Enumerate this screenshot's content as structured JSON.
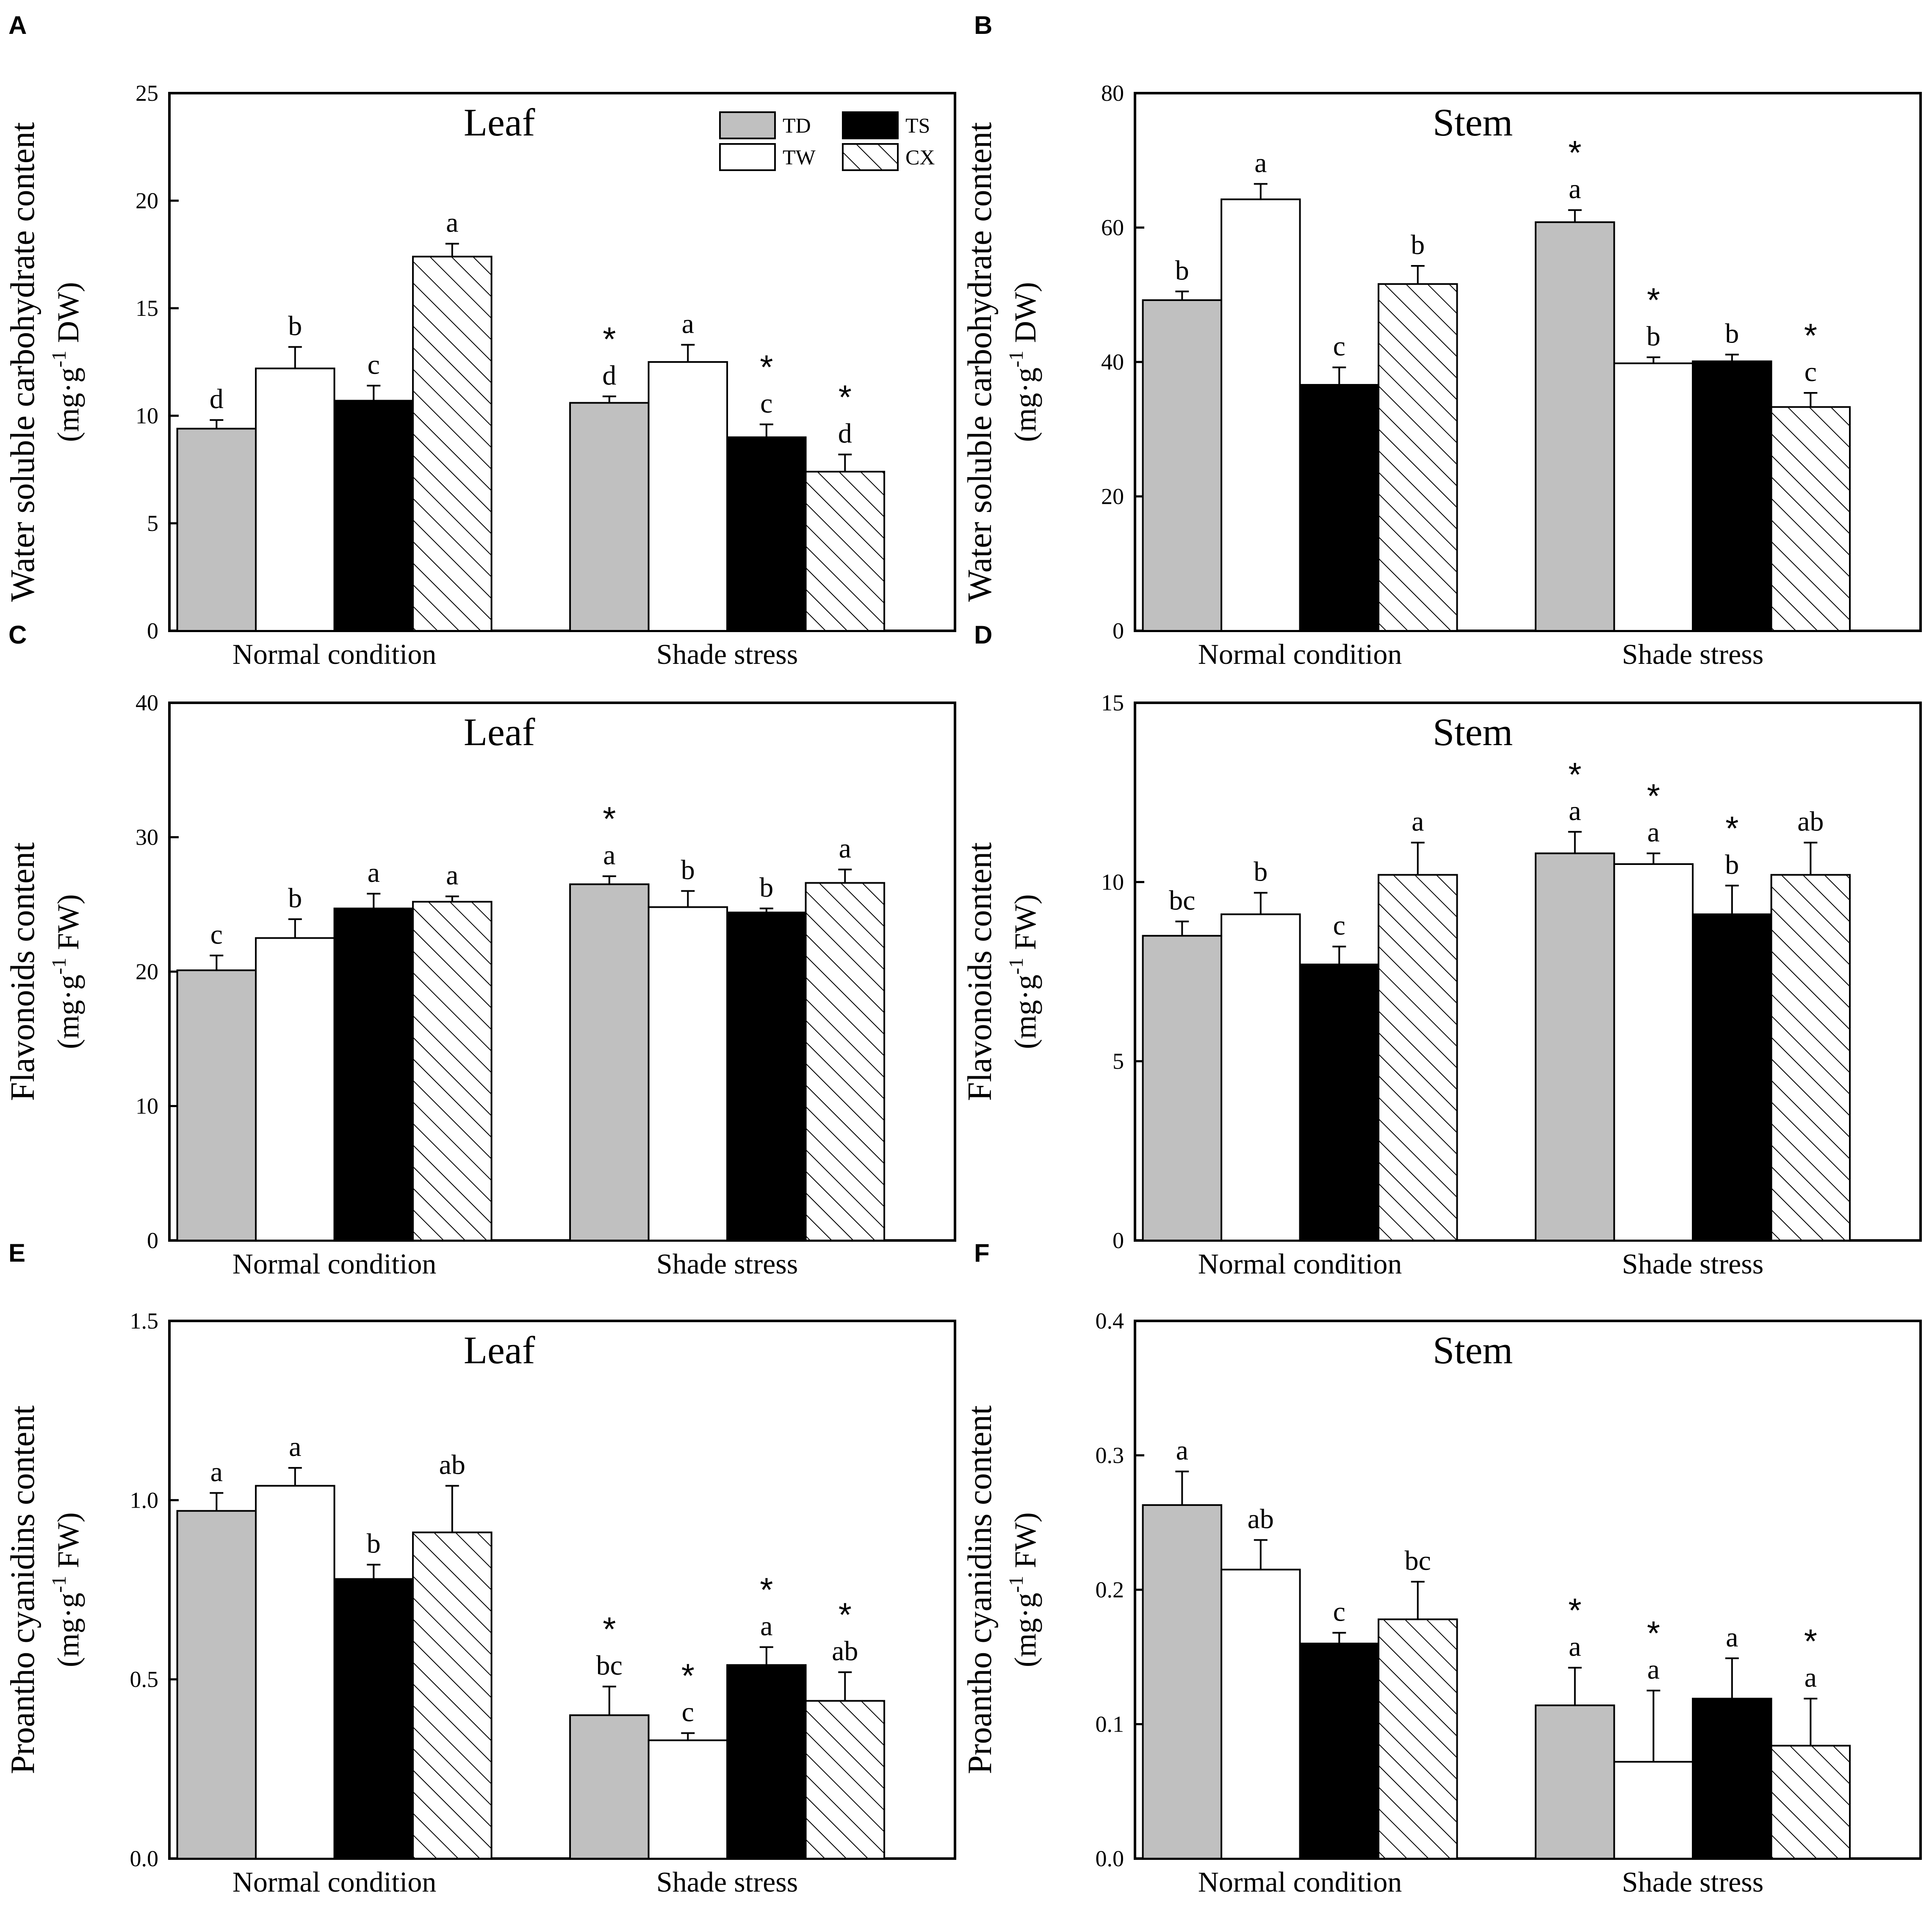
{
  "colors": {
    "TD": "#c0c0c0",
    "TW": "#ffffff",
    "TS": "#000000",
    "CX": "hatch"
  },
  "legend": [
    "TD",
    "TS",
    "TW",
    "CX"
  ],
  "chart_data": [
    {
      "panel": "A",
      "type": "bar",
      "title": "Leaf",
      "ylabel": "Water soluble carbohydrate content",
      "ylabel_unit_pre": "(mg·g",
      "ylabel_unit_sup": "-1",
      "ylabel_unit_post": " DW)",
      "ylim": [
        0,
        25
      ],
      "yticks": [
        "0",
        "5",
        "10",
        "15",
        "20",
        "25"
      ],
      "ytick_values": [
        0,
        5,
        10,
        15,
        20,
        25
      ],
      "categories": [
        "Normal condition",
        "Shade stress"
      ],
      "show_legend": true,
      "series": [
        {
          "name": "TD",
          "values": [
            9.4,
            10.6
          ],
          "errors": [
            0.4,
            0.3
          ],
          "letters": [
            "d",
            "d"
          ],
          "stars": [
            "",
            "*"
          ]
        },
        {
          "name": "TW",
          "values": [
            12.2,
            12.5
          ],
          "errors": [
            1.0,
            0.8
          ],
          "letters": [
            "b",
            "a"
          ],
          "stars": [
            "",
            ""
          ]
        },
        {
          "name": "TS",
          "values": [
            10.7,
            9.0
          ],
          "errors": [
            0.7,
            0.6
          ],
          "letters": [
            "c",
            "c"
          ],
          "stars": [
            "",
            "*"
          ]
        },
        {
          "name": "CX",
          "values": [
            17.4,
            7.4
          ],
          "errors": [
            0.6,
            0.8
          ],
          "letters": [
            "a",
            "d"
          ],
          "stars": [
            "",
            "*"
          ]
        }
      ]
    },
    {
      "panel": "B",
      "type": "bar",
      "title": "Stem",
      "ylabel": "Water soluble carbohydrate content",
      "ylabel_unit_pre": "(mg·g",
      "ylabel_unit_sup": "-1",
      "ylabel_unit_post": " DW)",
      "ylim": [
        0,
        80
      ],
      "yticks": [
        "0",
        "20",
        "40",
        "60",
        "80"
      ],
      "ytick_values": [
        0,
        20,
        40,
        60,
        80
      ],
      "categories": [
        "Normal condition",
        "Shade stress"
      ],
      "show_legend": false,
      "series": [
        {
          "name": "TD",
          "values": [
            49.2,
            60.8
          ],
          "errors": [
            1.3,
            1.8
          ],
          "letters": [
            "b",
            "a"
          ],
          "stars": [
            "",
            "*"
          ]
        },
        {
          "name": "TW",
          "values": [
            64.2,
            39.8
          ],
          "errors": [
            2.3,
            0.9
          ],
          "letters": [
            "a",
            "b"
          ],
          "stars": [
            "",
            "*"
          ]
        },
        {
          "name": "TS",
          "values": [
            36.6,
            40.1
          ],
          "errors": [
            2.6,
            1.0
          ],
          "letters": [
            "c",
            "b"
          ],
          "stars": [
            "",
            ""
          ]
        },
        {
          "name": "CX",
          "values": [
            51.6,
            33.3
          ],
          "errors": [
            2.7,
            2.1
          ],
          "letters": [
            "b",
            "c"
          ],
          "stars": [
            "",
            "*"
          ]
        }
      ]
    },
    {
      "panel": "C",
      "type": "bar",
      "title": "Leaf",
      "ylabel": "Flavonoids content",
      "ylabel_unit_pre": "(mg·g",
      "ylabel_unit_sup": "-1",
      "ylabel_unit_post": " FW)",
      "ylim": [
        0,
        40
      ],
      "yticks": [
        "0",
        "10",
        "20",
        "30",
        "40"
      ],
      "ytick_values": [
        0,
        10,
        20,
        30,
        40
      ],
      "categories": [
        "Normal condition",
        "Shade stress"
      ],
      "show_legend": false,
      "series": [
        {
          "name": "TD",
          "values": [
            20.1,
            26.5
          ],
          "errors": [
            1.1,
            0.6
          ],
          "letters": [
            "c",
            "a"
          ],
          "stars": [
            "",
            "*"
          ]
        },
        {
          "name": "TW",
          "values": [
            22.5,
            24.8
          ],
          "errors": [
            1.4,
            1.2
          ],
          "letters": [
            "b",
            "b"
          ],
          "stars": [
            "",
            ""
          ]
        },
        {
          "name": "TS",
          "values": [
            24.7,
            24.4
          ],
          "errors": [
            1.1,
            0.3
          ],
          "letters": [
            "a",
            "b"
          ],
          "stars": [
            "",
            ""
          ]
        },
        {
          "name": "CX",
          "values": [
            25.2,
            26.6
          ],
          "errors": [
            0.4,
            1.0
          ],
          "letters": [
            "a",
            "a"
          ],
          "stars": [
            "",
            ""
          ]
        }
      ]
    },
    {
      "panel": "D",
      "type": "bar",
      "title": "Stem",
      "ylabel": "Flavonoids content",
      "ylabel_unit_pre": "(mg·g",
      "ylabel_unit_sup": "-1",
      "ylabel_unit_post": " FW)",
      "ylim": [
        0,
        15
      ],
      "yticks": [
        "0",
        "5",
        "10",
        "15"
      ],
      "ytick_values": [
        0,
        5,
        10,
        15
      ],
      "categories": [
        "Normal condition",
        "Shade stress"
      ],
      "show_legend": false,
      "series": [
        {
          "name": "TD",
          "values": [
            8.5,
            10.8
          ],
          "errors": [
            0.4,
            0.6
          ],
          "letters": [
            "bc",
            "a"
          ],
          "stars": [
            "",
            "*"
          ]
        },
        {
          "name": "TW",
          "values": [
            9.1,
            10.5
          ],
          "errors": [
            0.6,
            0.3
          ],
          "letters": [
            "b",
            "a"
          ],
          "stars": [
            "",
            "*"
          ]
        },
        {
          "name": "TS",
          "values": [
            7.7,
            9.1
          ],
          "errors": [
            0.5,
            0.8
          ],
          "letters": [
            "c",
            "b"
          ],
          "stars": [
            "",
            "*"
          ]
        },
        {
          "name": "CX",
          "values": [
            10.2,
            10.2
          ],
          "errors": [
            0.9,
            0.9
          ],
          "letters": [
            "a",
            "ab"
          ],
          "stars": [
            "",
            ""
          ]
        }
      ]
    },
    {
      "panel": "E",
      "type": "bar",
      "title": "Leaf",
      "ylabel": "Proantho cyanidins content",
      "ylabel_unit_pre": "(mg·g",
      "ylabel_unit_sup": "-1",
      "ylabel_unit_post": " FW)",
      "ylim": [
        0,
        1.5
      ],
      "yticks": [
        "0.0",
        "0.5",
        "1.0",
        "1.5"
      ],
      "ytick_values": [
        0,
        0.5,
        1.0,
        1.5
      ],
      "categories": [
        "Normal condition",
        "Shade stress"
      ],
      "show_legend": false,
      "series": [
        {
          "name": "TD",
          "values": [
            0.97,
            0.4
          ],
          "errors": [
            0.05,
            0.08
          ],
          "letters": [
            "a",
            "bc"
          ],
          "stars": [
            "",
            "*"
          ]
        },
        {
          "name": "TW",
          "values": [
            1.04,
            0.33
          ],
          "errors": [
            0.05,
            0.02
          ],
          "letters": [
            "a",
            "c"
          ],
          "stars": [
            "",
            "*"
          ]
        },
        {
          "name": "TS",
          "values": [
            0.78,
            0.54
          ],
          "errors": [
            0.04,
            0.05
          ],
          "letters": [
            "b",
            "a"
          ],
          "stars": [
            "",
            "*"
          ]
        },
        {
          "name": "CX",
          "values": [
            0.91,
            0.44
          ],
          "errors": [
            0.13,
            0.08
          ],
          "letters": [
            "ab",
            "ab"
          ],
          "stars": [
            "",
            "*"
          ]
        }
      ]
    },
    {
      "panel": "F",
      "type": "bar",
      "title": "Stem",
      "ylabel": "Proantho cyanidins content",
      "ylabel_unit_pre": "(mg·g",
      "ylabel_unit_sup": "-1",
      "ylabel_unit_post": " FW)",
      "ylim": [
        0,
        0.4
      ],
      "yticks": [
        "0.0",
        "0.1",
        "0.2",
        "0.3",
        "0.4"
      ],
      "ytick_values": [
        0,
        0.1,
        0.2,
        0.3,
        0.4
      ],
      "categories": [
        "Normal condition",
        "Shade stress"
      ],
      "show_legend": false,
      "series": [
        {
          "name": "TD",
          "values": [
            0.263,
            0.114
          ],
          "errors": [
            0.025,
            0.028
          ],
          "letters": [
            "a",
            "a"
          ],
          "stars": [
            "",
            "*"
          ]
        },
        {
          "name": "TW",
          "values": [
            0.215,
            0.072
          ],
          "errors": [
            0.022,
            0.053
          ],
          "letters": [
            "ab",
            "a"
          ],
          "stars": [
            "",
            "*"
          ]
        },
        {
          "name": "TS",
          "values": [
            0.16,
            0.119
          ],
          "errors": [
            0.008,
            0.03
          ],
          "letters": [
            "c",
            "a"
          ],
          "stars": [
            "",
            ""
          ]
        },
        {
          "name": "CX",
          "values": [
            0.178,
            0.084
          ],
          "errors": [
            0.028,
            0.035
          ],
          "letters": [
            "bc",
            "a"
          ],
          "stars": [
            "",
            "*"
          ]
        }
      ]
    }
  ]
}
